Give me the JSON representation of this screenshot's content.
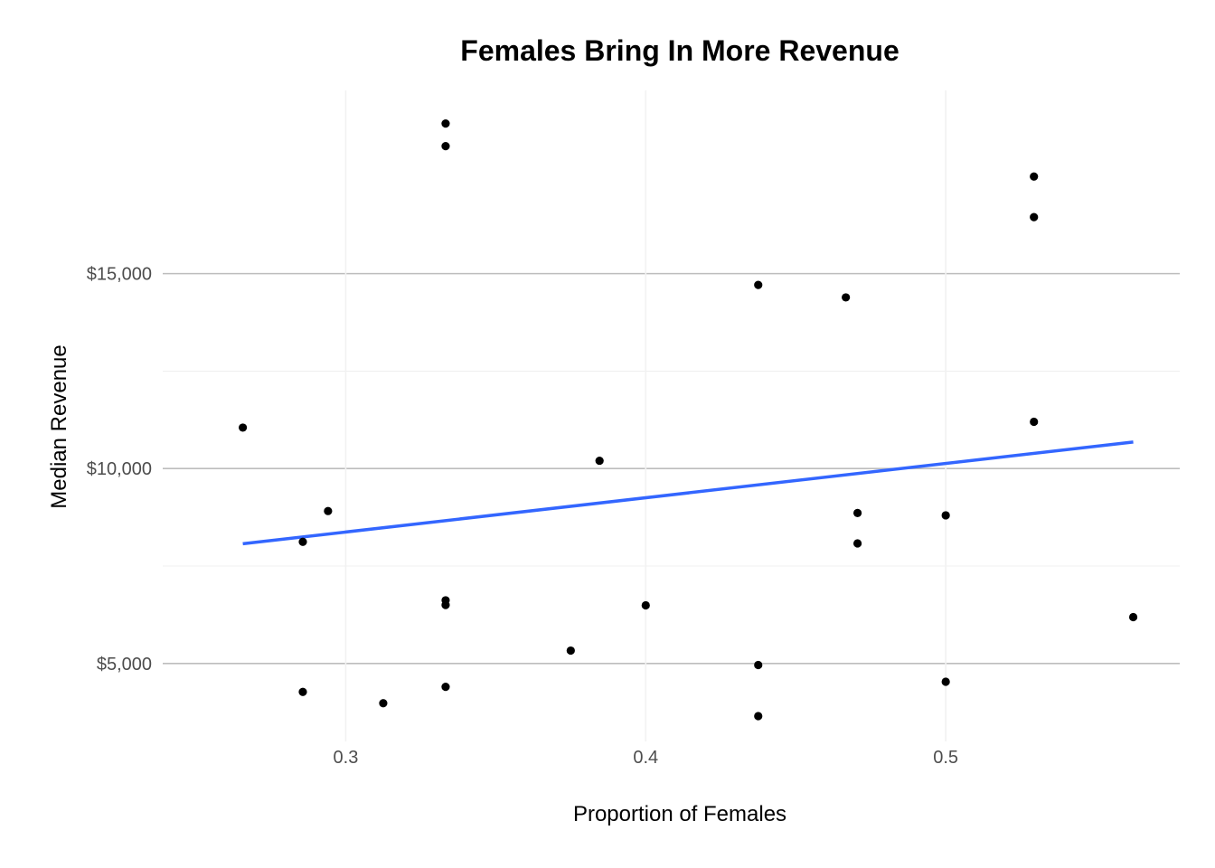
{
  "chart_data": {
    "type": "scatter",
    "title": "Females Bring In More Revenue",
    "xlabel": "Proportion of Females",
    "ylabel": "Median Revenue",
    "xlim": [
      0.239,
      0.578
    ],
    "ylim": [
      3000,
      19700
    ],
    "x_ticks": [
      {
        "value": 0.3,
        "label": "0.3"
      },
      {
        "value": 0.4,
        "label": "0.4"
      },
      {
        "value": 0.5,
        "label": "0.5"
      }
    ],
    "y_ticks": [
      {
        "value": 5000,
        "label": "$5,000"
      },
      {
        "value": 10000,
        "label": "$10,000"
      },
      {
        "value": 15000,
        "label": "$15,000"
      }
    ],
    "grid": true,
    "legend": "none",
    "colors": {
      "points": "#000000",
      "trend": "#3366ff",
      "grid": "#bdbdbd"
    },
    "points": [
      {
        "x": 0.2657,
        "y": 11050
      },
      {
        "x": 0.2857,
        "y": 8120
      },
      {
        "x": 0.2857,
        "y": 4270
      },
      {
        "x": 0.2941,
        "y": 8910
      },
      {
        "x": 0.3125,
        "y": 3980
      },
      {
        "x": 0.3333,
        "y": 18850
      },
      {
        "x": 0.3333,
        "y": 18270
      },
      {
        "x": 0.3333,
        "y": 6620
      },
      {
        "x": 0.3333,
        "y": 6500
      },
      {
        "x": 0.3333,
        "y": 4400
      },
      {
        "x": 0.375,
        "y": 5330
      },
      {
        "x": 0.3846,
        "y": 10200
      },
      {
        "x": 0.4,
        "y": 6490
      },
      {
        "x": 0.4375,
        "y": 14710
      },
      {
        "x": 0.4375,
        "y": 4960
      },
      {
        "x": 0.4375,
        "y": 3650
      },
      {
        "x": 0.4667,
        "y": 14390
      },
      {
        "x": 0.4706,
        "y": 8860
      },
      {
        "x": 0.4706,
        "y": 8080
      },
      {
        "x": 0.5,
        "y": 8800
      },
      {
        "x": 0.5,
        "y": 4530
      },
      {
        "x": 0.5294,
        "y": 17490
      },
      {
        "x": 0.5294,
        "y": 16450
      },
      {
        "x": 0.5294,
        "y": 11200
      },
      {
        "x": 0.5625,
        "y": 6190
      }
    ],
    "trend_line": {
      "type": "linear",
      "x": [
        0.2657,
        0.5625
      ],
      "y": [
        8070,
        10680
      ]
    }
  }
}
